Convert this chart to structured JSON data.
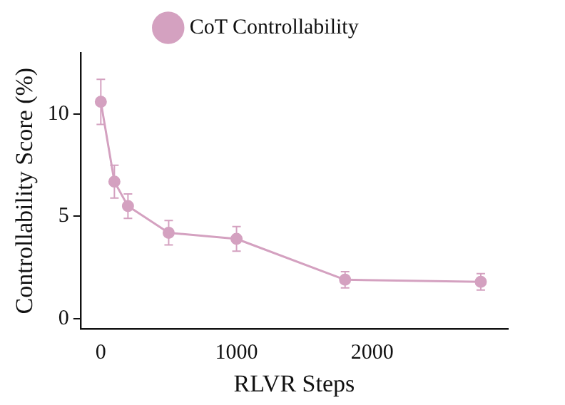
{
  "chart_data": {
    "type": "line",
    "xlabel": "RLVR Steps",
    "ylabel": "Controllability Score (%)",
    "x": [
      0,
      100,
      200,
      500,
      1000,
      1800,
      2800
    ],
    "series": [
      {
        "name": "CoT Controllability",
        "color": "#d4a1c0",
        "values": [
          10.6,
          6.7,
          5.5,
          4.2,
          3.9,
          1.9,
          1.8
        ],
        "errors": [
          1.1,
          0.8,
          0.6,
          0.6,
          0.6,
          0.4,
          0.4
        ]
      }
    ],
    "xlim": [
      -150,
      3000
    ],
    "xticks": [
      0,
      1000,
      2000
    ],
    "ylim": [
      -0.5,
      13
    ],
    "yticks": [
      0,
      5,
      10
    ],
    "grid": false,
    "legend": "top",
    "marker": "circle",
    "line_style": "solid"
  }
}
